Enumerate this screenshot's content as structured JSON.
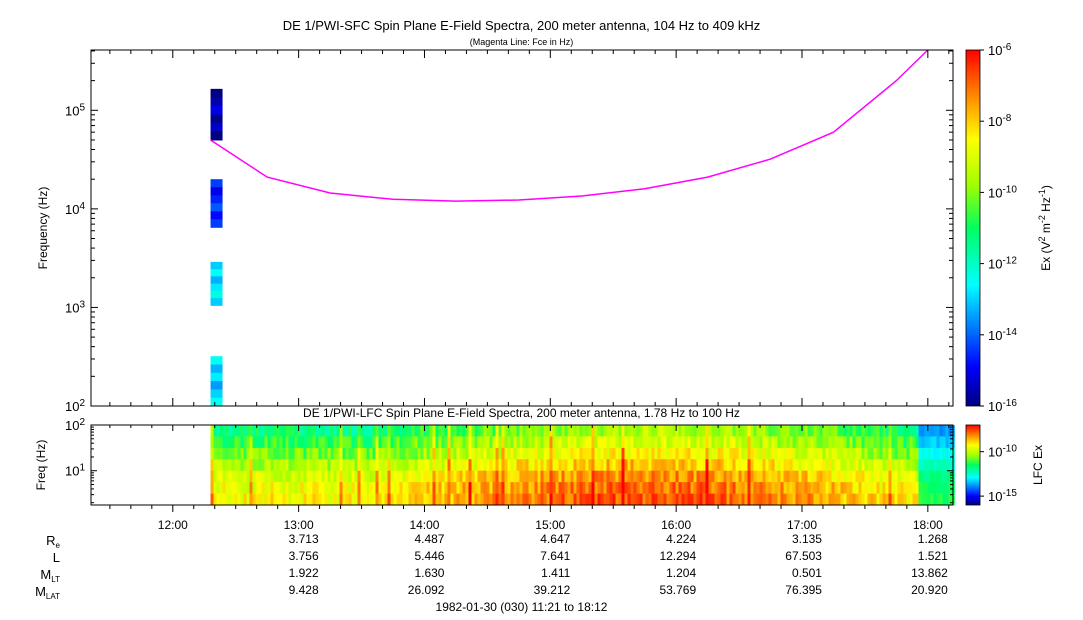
{
  "chart_data": [
    {
      "type": "heatmap",
      "title": "DE 1/PWI-SFC  Spin Plane E-Field Spectra, 200 meter antenna, 104 Hz to 409 kHz",
      "subtitle": "(Magenta Line: Fce in Hz)",
      "ylabel": "Frequency (Hz)",
      "yscale": "log",
      "ylim": [
        100,
        409000
      ],
      "xlim": [
        "11:21",
        "18:12"
      ],
      "y_ticks": [
        {
          "base": "10",
          "exp": "2"
        },
        {
          "base": "10",
          "exp": "3"
        },
        {
          "base": "10",
          "exp": "4"
        },
        {
          "base": "10",
          "exp": "5"
        }
      ],
      "colorbar": {
        "label_parts": [
          "Ex (V",
          "2",
          " m",
          "-2",
          " Hz",
          "-1",
          ")"
        ],
        "scale": "log",
        "range": [
          1e-16,
          1e-06
        ],
        "ticks": [
          {
            "base": "10",
            "exp": "-6"
          },
          {
            "base": "10",
            "exp": "-8"
          },
          {
            "base": "10",
            "exp": "-10"
          },
          {
            "base": "10",
            "exp": "-12"
          },
          {
            "base": "10",
            "exp": "-14"
          },
          {
            "base": "10",
            "exp": "-16"
          }
        ]
      },
      "data_blocks": [
        {
          "time": "12:18",
          "f_low": 50000,
          "f_high": 165000,
          "log_intensity": -15.6
        },
        {
          "time": "12:18",
          "f_low": 6500,
          "f_high": 20000,
          "log_intensity": -14.6
        },
        {
          "time": "12:18",
          "f_low": 1050,
          "f_high": 2900,
          "log_intensity": -12.8
        },
        {
          "time": "12:18",
          "f_low": 100,
          "f_high": 320,
          "log_intensity": -13.0
        }
      ],
      "fce_curve": {
        "color": "#ff00ff",
        "times": [
          "12:18",
          "12:45",
          "13:15",
          "13:45",
          "14:15",
          "14:45",
          "15:15",
          "15:45",
          "16:15",
          "16:45",
          "17:15",
          "17:45",
          "18:00"
        ],
        "values_hz": [
          50000,
          21000,
          14500,
          12500,
          12000,
          12300,
          13500,
          16000,
          21000,
          32000,
          60000,
          200000,
          409000
        ]
      }
    },
    {
      "type": "heatmap",
      "title": "DE 1/PWI-LFC  Spin Plane E-Field Spectra, 200 meter antenna, 1.78 Hz to 100 Hz",
      "ylabel": "Freq (Hz)",
      "yscale": "log",
      "ylim": [
        1.78,
        100
      ],
      "xlim": [
        "11:21",
        "18:12"
      ],
      "y_ticks": [
        {
          "base": "10",
          "exp": "1"
        },
        {
          "base": "10",
          "exp": "2"
        }
      ],
      "colorbar": {
        "label": "LFC Ex",
        "scale": "log",
        "range": [
          1e-16,
          1e-07
        ],
        "ticks": [
          {
            "base": "10",
            "exp": "-10"
          },
          {
            "base": "10",
            "exp": "-15"
          }
        ]
      },
      "data_start": "12:18",
      "band_profile_log_intensity": [
        -11.0,
        -10.5,
        -10.0,
        -9.5,
        -9.0,
        -8.7,
        -8.5
      ]
    }
  ],
  "time_axis": {
    "labels": [
      "12:00",
      "13:00",
      "14:00",
      "15:00",
      "16:00",
      "17:00",
      "18:00"
    ]
  },
  "ephemeris": {
    "rows": [
      {
        "label": "R",
        "sub": "e",
        "values": [
          "3.713",
          "4.487",
          "4.647",
          "4.224",
          "3.135",
          "1.268"
        ]
      },
      {
        "label": "L",
        "sub": "",
        "values": [
          "3.756",
          "5.446",
          "7.641",
          "12.294",
          "67.503",
          "1.521"
        ]
      },
      {
        "label": "M",
        "sub": "LT",
        "values": [
          "1.922",
          "1.630",
          "1.411",
          "1.204",
          "0.501",
          "13.862"
        ]
      },
      {
        "label": "M",
        "sub": "LAT",
        "values": [
          "9.428",
          "26.092",
          "39.212",
          "53.769",
          "76.395",
          "20.920"
        ]
      }
    ]
  },
  "footer": "1982-01-30 (030) 11:21 to 18:12"
}
